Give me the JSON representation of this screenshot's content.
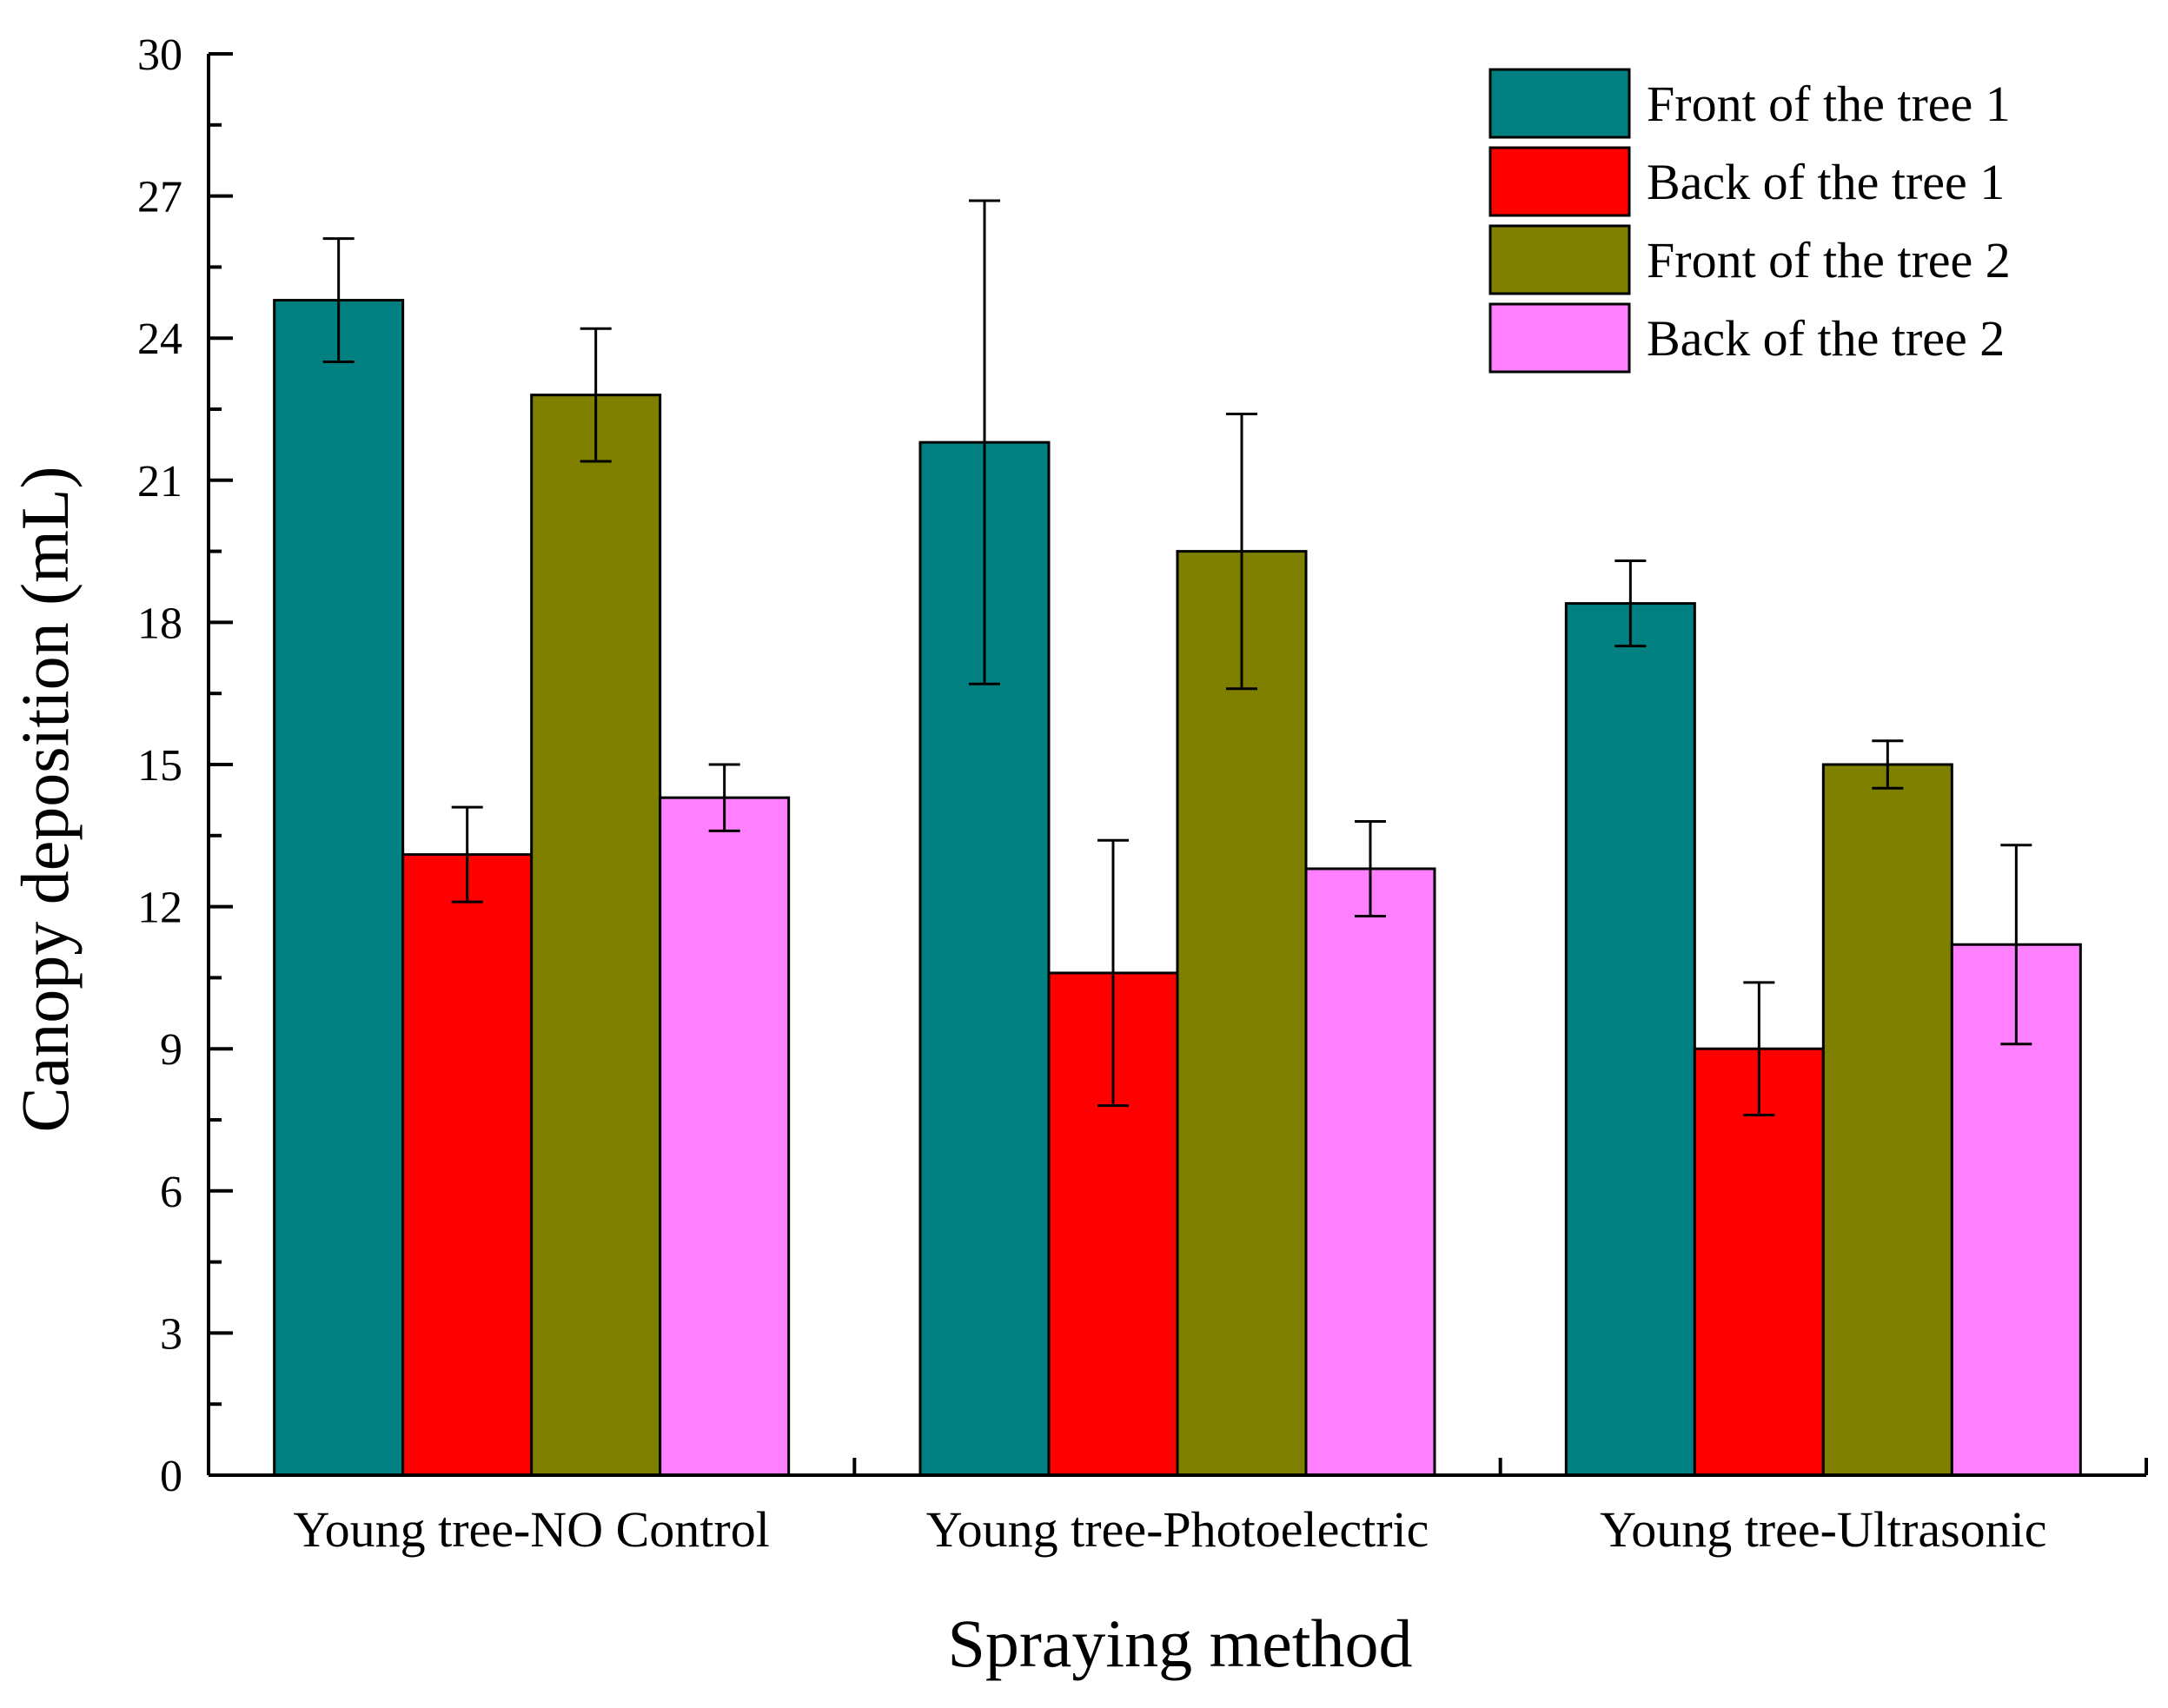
{
  "chart_data": {
    "type": "bar",
    "title": "",
    "xlabel": "Spraying method",
    "ylabel": "Canopy deposition (mL)",
    "ylim": [
      0,
      30
    ],
    "yticks": [
      0,
      3,
      6,
      9,
      12,
      15,
      18,
      21,
      24,
      27,
      30
    ],
    "categories": [
      "Young tree-NO Control",
      "Young tree-Photoelectric",
      "Young tree-Ultrasonic"
    ],
    "legend_position": "top-right",
    "series": [
      {
        "name": "Front of the tree 1",
        "color": "#008080",
        "values": [
          24.8,
          21.8,
          18.4
        ],
        "errors": [
          1.3,
          5.1,
          0.9
        ]
      },
      {
        "name": "Back of the tree 1",
        "color": "#ff0000",
        "values": [
          13.1,
          10.6,
          9.0
        ],
        "errors": [
          1.0,
          2.8,
          1.4
        ]
      },
      {
        "name": "Front of the tree 2",
        "color": "#808000",
        "values": [
          22.8,
          19.5,
          15.0
        ],
        "errors": [
          1.4,
          2.9,
          0.5
        ]
      },
      {
        "name": "Back of the tree 2",
        "color": "#ff80ff",
        "values": [
          14.3,
          12.8,
          11.2
        ],
        "errors": [
          0.7,
          1.0,
          2.1
        ]
      }
    ]
  }
}
